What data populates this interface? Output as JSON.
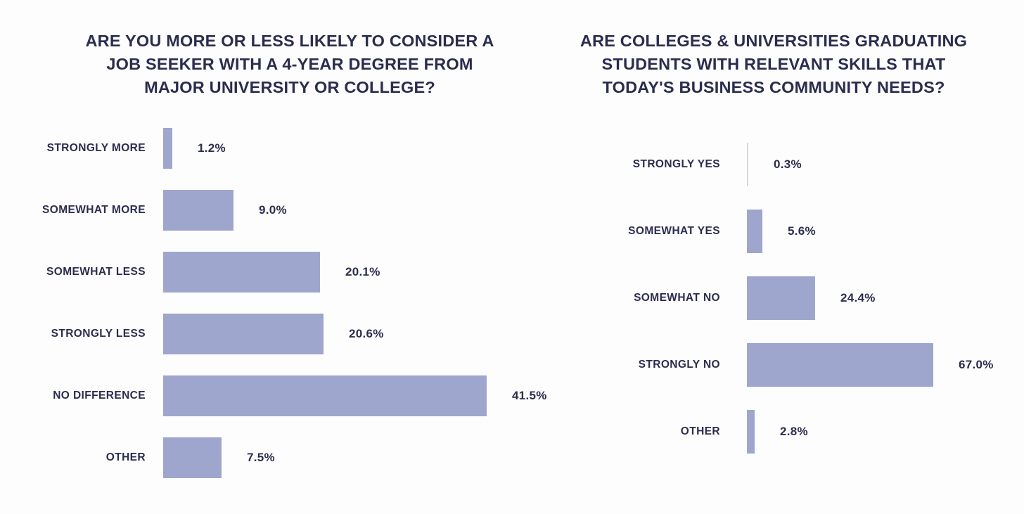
{
  "page": {
    "background_color": "#fdfdfd",
    "text_color": "#2b2d4e",
    "bar_color": "#9ea6ce",
    "hairline_bar_color": "#d6d6da"
  },
  "chart_data": [
    {
      "type": "bar",
      "orientation": "horizontal",
      "title": "ARE YOU MORE OR LESS LIKELY TO CONSIDER A JOB SEEKER WITH A 4-YEAR DEGREE FROM MAJOR UNIVERSITY OR COLLEGE?",
      "title_lines": [
        "ARE YOU MORE OR LESS LIKELY TO CONSIDER A",
        "JOB SEEKER WITH A 4-YEAR DEGREE FROM",
        "MAJOR UNIVERSITY OR COLLEGE?"
      ],
      "categories": [
        "STRONGLY MORE",
        "SOMEWHAT MORE",
        "SOMEWHAT LESS",
        "STRONGLY LESS",
        "NO DIFFERENCE",
        "OTHER"
      ],
      "values": [
        1.2,
        9.0,
        20.1,
        20.6,
        41.5,
        7.5
      ],
      "value_labels": [
        "1.2%",
        "9.0%",
        "20.1%",
        "20.6%",
        "41.5%",
        "7.5%"
      ],
      "unit": "%",
      "xlabel": "",
      "ylabel": "",
      "grid": false,
      "legend": false,
      "value_axis_range": [
        0,
        41.5
      ]
    },
    {
      "type": "bar",
      "orientation": "horizontal",
      "title": "ARE COLLEGES & UNIVERSITIES GRADUATING STUDENTS WITH RELEVANT SKILLS THAT TODAY'S BUSINESS COMMUNITY NEEDS?",
      "title_lines": [
        "ARE COLLEGES & UNIVERSITIES GRADUATING",
        "STUDENTS WITH RELEVANT SKILLS THAT",
        "TODAY'S BUSINESS COMMUNITY NEEDS?"
      ],
      "categories": [
        "STRONGLY YES",
        "SOMEWHAT YES",
        "SOMEWHAT NO",
        "STRONGLY NO",
        "OTHER"
      ],
      "values": [
        0.3,
        5.6,
        24.4,
        67.0,
        2.8
      ],
      "value_labels": [
        "0.3%",
        "5.6%",
        "24.4%",
        "67.0%",
        "2.8%"
      ],
      "unit": "%",
      "xlabel": "",
      "ylabel": "",
      "grid": false,
      "legend": false,
      "value_axis_range": [
        0,
        67.0
      ]
    }
  ]
}
